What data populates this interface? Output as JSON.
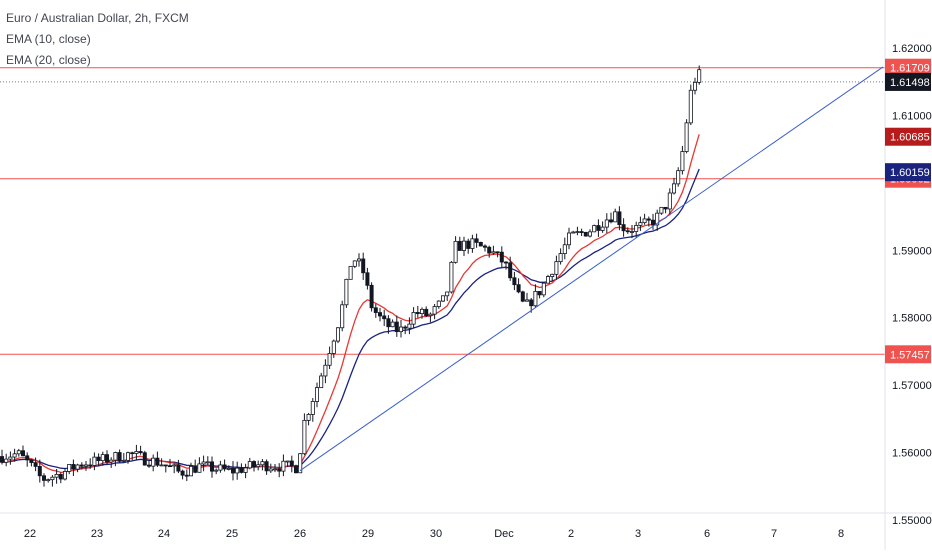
{
  "chart_data": {
    "type": "candlestick",
    "title": "Euro / Australian Dollar, 2h, FXCM",
    "indicators": [
      {
        "name": "EMA (10, close)",
        "color": "#e53935"
      },
      {
        "name": "EMA (20, close)",
        "color": "#1a237e"
      }
    ],
    "ylim": [
      1.5458,
      1.6231
    ],
    "y_ticks": [
      "1.55000",
      "1.56000",
      "1.57000",
      "1.58000",
      "1.59000",
      "1.61000",
      "1.62000"
    ],
    "x_ticks": [
      "22",
      "23",
      "24",
      "25",
      "26",
      "29",
      "30",
      "Dec",
      "2",
      "3",
      "6",
      "7",
      "8"
    ],
    "grid": false,
    "horizontal_lines": [
      {
        "value": 1.61709,
        "label": "1.61709",
        "color": "#ef5350"
      },
      {
        "value": 1.60062,
        "label": "1.60062",
        "color": "#ef5350"
      },
      {
        "value": 1.57457,
        "label": "1.57457",
        "color": "#ef5350"
      }
    ],
    "price_line": {
      "value": 1.61498,
      "label": "1.61498",
      "color": "#131722"
    },
    "ema_labels": [
      {
        "value": 1.60685,
        "label": "1.60685",
        "color": "#b71c1c"
      },
      {
        "value": 1.60159,
        "label": "1.60159",
        "color": "#1a237e"
      }
    ],
    "trendline": {
      "from": {
        "date": "Nov 26",
        "price": 1.5573
      },
      "to": {
        "date": "Dec 6",
        "price": 1.6172
      },
      "color": "#3a5fc8"
    },
    "colors": {
      "up": "#ffffff",
      "down": "#131722",
      "wick": "#131722",
      "axis_text": "#131722",
      "border": "#e0e3eb"
    }
  }
}
